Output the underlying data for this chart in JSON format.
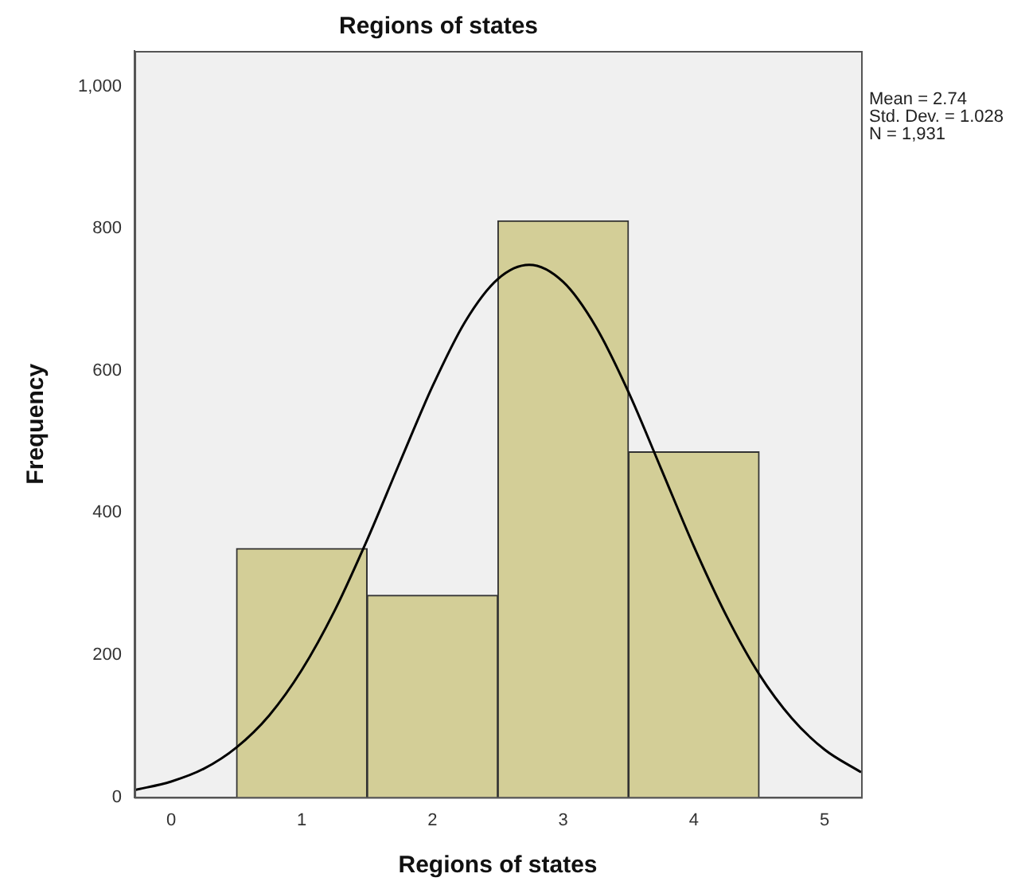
{
  "chart_data": {
    "type": "histogram",
    "title": "Regions of states",
    "xlabel": "Regions of states",
    "ylabel": "Frequency",
    "series": [
      {
        "color": "#d3ce97",
        "bins": [
          0.5,
          1.5,
          2.5,
          3.5,
          4.5
        ],
        "values": [
          350,
          284,
          811,
          486
        ]
      },
      {
        "type": "line",
        "color": "#000000",
        "x": [
          -0.28,
          0,
          0.25,
          0.5,
          0.75,
          1,
          1.25,
          1.5,
          1.75,
          2,
          2.25,
          2.5,
          2.74,
          3,
          3.25,
          3.5,
          3.75,
          4,
          4.25,
          4.5,
          4.75,
          5,
          5.28
        ],
        "values": [
          10,
          22,
          40,
          70,
          115,
          179,
          262,
          362,
          471,
          578,
          669,
          729,
          749,
          725,
          662,
          570,
          462,
          353,
          255,
          173,
          111,
          67,
          35
        ]
      }
    ],
    "xlim": [
      -0.28,
      5.28
    ],
    "xticks": [
      0,
      1,
      2,
      3,
      4,
      5
    ],
    "ylim": [
      0,
      1050
    ],
    "yticks": [
      0,
      200,
      400,
      600,
      800,
      {
        "value": 1000,
        "label": "1,000"
      }
    ],
    "grid": false,
    "marker": "none",
    "line_style": "solid",
    "annotations": [
      "Mean = 2.74",
      "Std. Dev. = 1.028",
      "N = 1,931"
    ]
  }
}
